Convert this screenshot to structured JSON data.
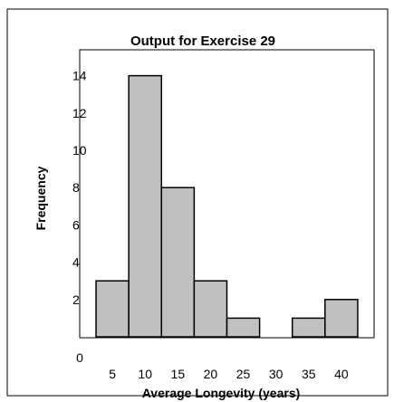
{
  "chart_data": {
    "type": "bar",
    "title": "Output for Exercise 29",
    "xlabel": "Average Longevity (years)",
    "ylabel": "Frequency",
    "x_ticks": [
      "5",
      "10",
      "15",
      "20",
      "25",
      "30",
      "35",
      "40"
    ],
    "y_ticks": [
      "0",
      "2",
      "4",
      "6",
      "8",
      "10",
      "12",
      "14"
    ],
    "bins": [
      {
        "x_start": 2.5,
        "x_end": 7.5,
        "value": 3
      },
      {
        "x_start": 7.5,
        "x_end": 12.5,
        "value": 14
      },
      {
        "x_start": 12.5,
        "x_end": 17.5,
        "value": 8
      },
      {
        "x_start": 17.5,
        "x_end": 22.5,
        "value": 3
      },
      {
        "x_start": 22.5,
        "x_end": 27.5,
        "value": 1
      },
      {
        "x_start": 27.5,
        "x_end": 32.5,
        "value": 0
      },
      {
        "x_start": 32.5,
        "x_end": 37.5,
        "value": 1
      },
      {
        "x_start": 37.5,
        "x_end": 42.5,
        "value": 2
      }
    ],
    "xlim": [
      0,
      45
    ],
    "ylim": [
      0,
      15
    ],
    "grid": false,
    "bar_color": "#c0c0c0",
    "edge_color": "#000000"
  }
}
